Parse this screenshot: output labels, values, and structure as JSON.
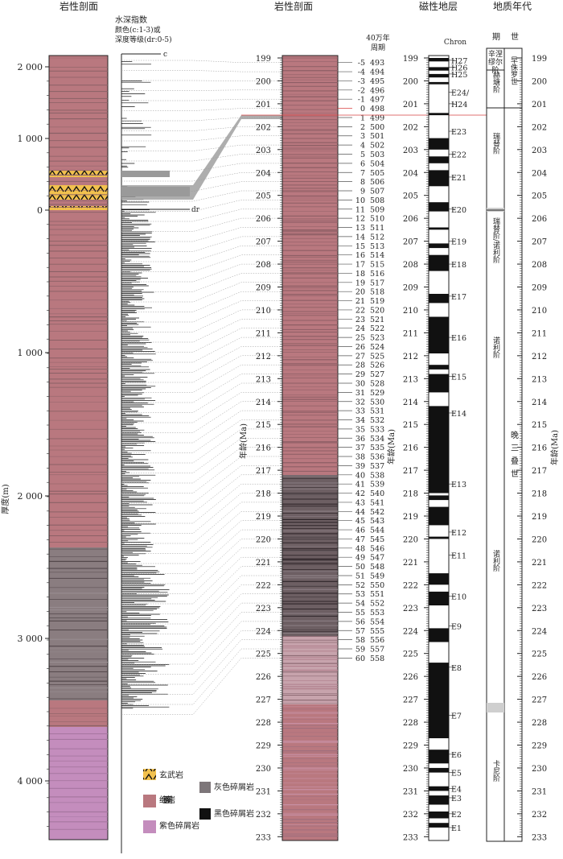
{
  "headers": {
    "lithology_left": "岩性剖面",
    "water_index": "水深指数",
    "water_index_line2": "颜色(c:1-3)或",
    "water_index_line3": "深度等级(dr:0-5)",
    "lithology_mid": "岩性剖面",
    "magnetostratigraphy": "磁性地层",
    "geologic_age": "地质年代",
    "cycle_40": "40万年",
    "cycle_label": "周期",
    "chron": "Chron",
    "stage_col": "期",
    "epoch_col": "世"
  },
  "axis_labels": {
    "thickness": "厚度(m)",
    "age_mid": "年龄(Ma)",
    "age_chron": "年龄(Ma)",
    "age_right": "年龄(Ma)"
  },
  "scale_marks": {
    "c": "c",
    "dr": "dr"
  },
  "depth_ticks": [
    "2 000",
    "1 000",
    "0",
    "1 000",
    "2 000",
    "3 000",
    "4 000"
  ],
  "age_ticks": [
    "199",
    "200",
    "201",
    "202",
    "203",
    "204",
    "205",
    "206",
    "207",
    "208",
    "209",
    "210",
    "211",
    "212",
    "213",
    "214",
    "215",
    "216",
    "217",
    "218",
    "219",
    "220",
    "221",
    "222",
    "223",
    "224",
    "225",
    "226",
    "227",
    "228",
    "229",
    "230",
    "231",
    "232",
    "233"
  ],
  "cycles": [
    [
      "-5",
      "493"
    ],
    [
      "-4",
      "494"
    ],
    [
      "-3",
      "495"
    ],
    [
      "-2",
      "496"
    ],
    [
      "-1",
      "497"
    ],
    [
      "0",
      "498"
    ],
    [
      "1",
      "499"
    ],
    [
      "2",
      "500"
    ],
    [
      "3",
      "501"
    ],
    [
      "4",
      "502"
    ],
    [
      "5",
      "503"
    ],
    [
      "6",
      "504"
    ],
    [
      "7",
      "505"
    ],
    [
      "8",
      "506"
    ],
    [
      "9",
      "507"
    ],
    [
      "10",
      "508"
    ],
    [
      "11",
      "509"
    ],
    [
      "12",
      "510"
    ],
    [
      "13",
      "511"
    ],
    [
      "14",
      "512"
    ],
    [
      "15",
      "513"
    ],
    [
      "16",
      "514"
    ],
    [
      "17",
      "515"
    ],
    [
      "18",
      "516"
    ],
    [
      "19",
      "517"
    ],
    [
      "20",
      "518"
    ],
    [
      "21",
      "519"
    ],
    [
      "22",
      "520"
    ],
    [
      "23",
      "521"
    ],
    [
      "24",
      "522"
    ],
    [
      "25",
      "523"
    ],
    [
      "26",
      "524"
    ],
    [
      "27",
      "525"
    ],
    [
      "28",
      "526"
    ],
    [
      "29",
      "527"
    ],
    [
      "30",
      "528"
    ],
    [
      "31",
      "529"
    ],
    [
      "32",
      "530"
    ],
    [
      "33",
      "531"
    ],
    [
      "34",
      "532"
    ],
    [
      "35",
      "533"
    ],
    [
      "36",
      "534"
    ],
    [
      "37",
      "535"
    ],
    [
      "38",
      "536"
    ],
    [
      "39",
      "537"
    ],
    [
      "40",
      "538"
    ],
    [
      "41",
      "539"
    ],
    [
      "42",
      "540"
    ],
    [
      "43",
      "541"
    ],
    [
      "44",
      "542"
    ],
    [
      "45",
      "543"
    ],
    [
      "46",
      "544"
    ],
    [
      "47",
      "545"
    ],
    [
      "48",
      "546"
    ],
    [
      "49",
      "547"
    ],
    [
      "50",
      "548"
    ],
    [
      "51",
      "549"
    ],
    [
      "52",
      "550"
    ],
    [
      "53",
      "551"
    ],
    [
      "54",
      "552"
    ],
    [
      "55",
      "553"
    ],
    [
      "56",
      "554"
    ],
    [
      "57",
      "555"
    ],
    [
      "58",
      "556"
    ],
    [
      "59",
      "557"
    ],
    [
      "60",
      "558"
    ]
  ],
  "chrons": [
    {
      "name": "H27",
      "age": 199.1
    },
    {
      "name": "H26",
      "age": 199.4
    },
    {
      "name": "H25",
      "age": 199.7
    },
    {
      "name": "E24/",
      "age": 200.5
    },
    {
      "name": "H24",
      "age": 201.0
    },
    {
      "name": "E23",
      "age": 202.2
    },
    {
      "name": "E22",
      "age": 203.2
    },
    {
      "name": "E21",
      "age": 204.2
    },
    {
      "name": "E20",
      "age": 205.6
    },
    {
      "name": "E19",
      "age": 207.0
    },
    {
      "name": "E18",
      "age": 208.0
    },
    {
      "name": "E17",
      "age": 209.4
    },
    {
      "name": "E16",
      "age": 211.2
    },
    {
      "name": "E15",
      "age": 212.9
    },
    {
      "name": "E14",
      "age": 214.5
    },
    {
      "name": "E13",
      "age": 217.6
    },
    {
      "name": "E12",
      "age": 219.7
    },
    {
      "name": "E11",
      "age": 220.7
    },
    {
      "name": "E10",
      "age": 222.5
    },
    {
      "name": "E9",
      "age": 223.8
    },
    {
      "name": "E8",
      "age": 225.6
    },
    {
      "name": "E7",
      "age": 227.7
    },
    {
      "name": "E6",
      "age": 229.4
    },
    {
      "name": "E5",
      "age": 230.2
    },
    {
      "name": "E4",
      "age": 230.9
    },
    {
      "name": "E3",
      "age": 231.3
    },
    {
      "name": "E2",
      "age": 232.0
    },
    {
      "name": "E1",
      "age": 232.6
    }
  ],
  "stages": {
    "rhaetian_top": "辛涅",
    "rhaetian_top2": "缪尔",
    "rhaetian_top3": "阶",
    "hettangian": "赫塘阶",
    "rhaetian": "瑞替阶",
    "rhaetian_norian": "瑞替阶/诺利阶",
    "norian_1": "诺利阶",
    "norian_2": "诺利阶",
    "carnian": "卡尼阶"
  },
  "epochs": {
    "early_jurassic": "早侏罗世",
    "late_triassic": "晚三叠世"
  },
  "legend": {
    "basalt": "玄武岩",
    "red": "红色碎屑岩",
    "purple": "紫色碎屑岩",
    "gray": "灰色碎屑岩",
    "black": "黑色碎屑岩"
  },
  "colors": {
    "red_clastic": "#b9787f",
    "purple_clastic": "#c48dbd",
    "gray_clastic": "#7d7679",
    "black_clastic": "#111111",
    "basalt": "#f2c14e",
    "highlight": "#d94040"
  }
}
